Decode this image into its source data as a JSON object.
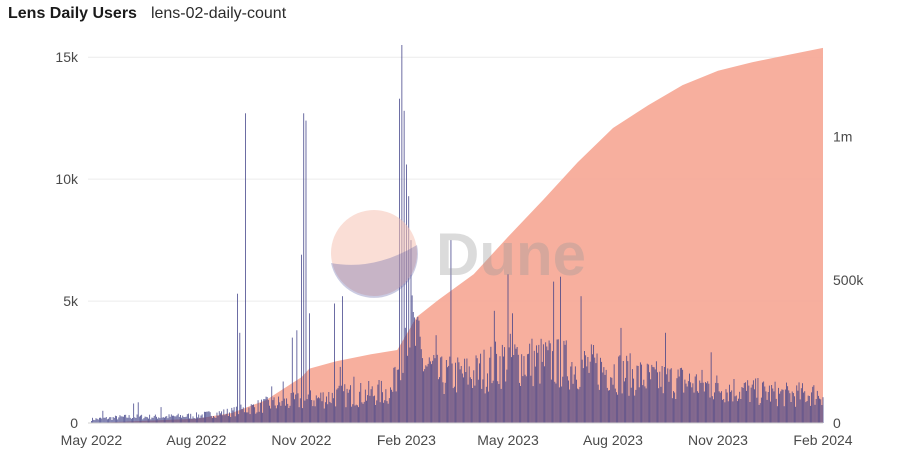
{
  "header": {
    "title": "Lens Daily Users",
    "subtitle": "lens-02-daily-count"
  },
  "watermark": {
    "text": "Dune"
  },
  "colors": {
    "bars": "#3d3f86",
    "area": "#f6a997",
    "grid": "#ececec",
    "axis": "#cfcfcf"
  },
  "chart_data": {
    "type": "bar+area",
    "x_ticks": [
      "May 2022",
      "Aug 2022",
      "Nov 2022",
      "Feb 2023",
      "May 2023",
      "Aug 2023",
      "Nov 2023",
      "Feb 2024"
    ],
    "y_left": {
      "ticks": [
        "0",
        "5k",
        "10k",
        "15k"
      ],
      "tick_values": [
        0,
        5000,
        10000,
        15000
      ],
      "range": [
        0,
        15500
      ]
    },
    "y_right": {
      "ticks": [
        "0",
        "500k",
        "1m"
      ],
      "tick_values": [
        0,
        500000,
        1000000
      ],
      "range": [
        0,
        1320000
      ]
    },
    "series": [
      {
        "kind": "bar",
        "axis": "left",
        "description": "daily users",
        "anchors": [
          [
            "2022-05-01",
            150
          ],
          [
            "2022-06-01",
            250
          ],
          [
            "2022-07-01",
            250
          ],
          [
            "2022-08-01",
            300
          ],
          [
            "2022-09-01",
            450
          ],
          [
            "2022-10-01",
            750
          ],
          [
            "2022-11-01",
            900
          ],
          [
            "2022-12-01",
            1100
          ],
          [
            "2023-01-01",
            1200
          ],
          [
            "2023-01-20",
            1300
          ],
          [
            "2023-02-01",
            4500
          ],
          [
            "2023-02-15",
            2500
          ],
          [
            "2023-03-01",
            1900
          ],
          [
            "2023-04-01",
            2000
          ],
          [
            "2023-05-01",
            2600
          ],
          [
            "2023-06-01",
            2500
          ],
          [
            "2023-07-01",
            2350
          ],
          [
            "2023-08-01",
            2150
          ],
          [
            "2023-09-01",
            1800
          ],
          [
            "2023-10-01",
            1700
          ],
          [
            "2023-11-01",
            1450
          ],
          [
            "2023-12-01",
            1300
          ],
          [
            "2024-01-01",
            1150
          ],
          [
            "2024-02-01",
            1200
          ]
        ],
        "spikes": [
          [
            "2022-05-11",
            500
          ],
          [
            "2022-06-07",
            800
          ],
          [
            "2022-06-11",
            850
          ],
          [
            "2022-07-01",
            650
          ],
          [
            "2022-09-06",
            5300
          ],
          [
            "2022-09-08",
            3700
          ],
          [
            "2022-09-13",
            12700
          ],
          [
            "2022-10-06",
            1500
          ],
          [
            "2022-10-16",
            1700
          ],
          [
            "2022-10-24",
            3500
          ],
          [
            "2022-10-28",
            3800
          ],
          [
            "2022-11-01",
            6900
          ],
          [
            "2022-11-03",
            12700
          ],
          [
            "2022-11-05",
            12400
          ],
          [
            "2022-11-08",
            4500
          ],
          [
            "2022-11-30",
            4900
          ],
          [
            "2022-12-05",
            2300
          ],
          [
            "2022-12-07",
            5200
          ],
          [
            "2022-12-17",
            1900
          ],
          [
            "2023-01-22",
            2300
          ],
          [
            "2023-01-26",
            13300
          ],
          [
            "2023-01-28",
            15500
          ],
          [
            "2023-01-30",
            12800
          ],
          [
            "2023-02-01",
            10600
          ],
          [
            "2023-02-03",
            9300
          ],
          [
            "2023-02-05",
            7500
          ],
          [
            "2023-02-12",
            4200
          ],
          [
            "2023-02-27",
            3600
          ],
          [
            "2023-03-12",
            7500
          ],
          [
            "2023-04-19",
            4600
          ],
          [
            "2023-05-01",
            6100
          ],
          [
            "2023-05-05",
            4500
          ],
          [
            "2023-06-10",
            5800
          ],
          [
            "2023-06-16",
            6000
          ],
          [
            "2023-07-04",
            5200
          ],
          [
            "2023-08-08",
            3900
          ],
          [
            "2023-09-16",
            3700
          ],
          [
            "2023-10-26",
            2900
          ]
        ]
      },
      {
        "kind": "area",
        "axis": "right",
        "description": "cumulative users",
        "points": [
          [
            "2022-05-01",
            0
          ],
          [
            "2022-08-01",
            15000
          ],
          [
            "2022-09-01",
            35000
          ],
          [
            "2022-10-01",
            80000
          ],
          [
            "2022-11-01",
            160000
          ],
          [
            "2022-11-08",
            190000
          ],
          [
            "2022-12-01",
            215000
          ],
          [
            "2023-01-01",
            240000
          ],
          [
            "2023-01-24",
            255000
          ],
          [
            "2023-02-10",
            370000
          ],
          [
            "2023-03-01",
            430000
          ],
          [
            "2023-04-01",
            520000
          ],
          [
            "2023-05-01",
            650000
          ],
          [
            "2023-06-01",
            780000
          ],
          [
            "2023-07-01",
            910000
          ],
          [
            "2023-08-01",
            1030000
          ],
          [
            "2023-09-01",
            1110000
          ],
          [
            "2023-10-01",
            1180000
          ],
          [
            "2023-11-01",
            1230000
          ],
          [
            "2023-12-01",
            1260000
          ],
          [
            "2024-01-01",
            1285000
          ],
          [
            "2024-02-01",
            1310000
          ]
        ]
      }
    ],
    "x_range": [
      "2022-04-28",
      "2024-02-01"
    ],
    "grid": true,
    "legend": "none"
  }
}
